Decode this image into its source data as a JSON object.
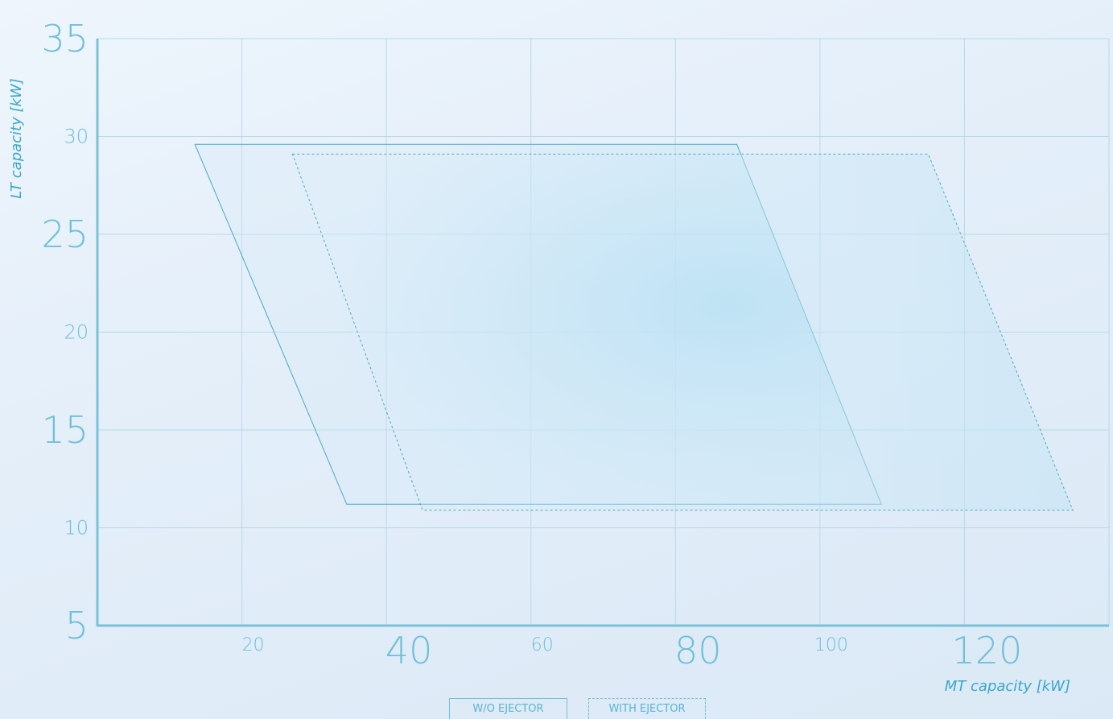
{
  "chart_data": {
    "type": "area",
    "xlabel": "MT capacity [kW]",
    "ylabel": "LT capacity [kW]",
    "xlim": [
      0,
      140
    ],
    "ylim": [
      5,
      35
    ],
    "x_ticks": [
      20,
      40,
      60,
      80,
      100,
      120
    ],
    "y_ticks": [
      5,
      10,
      15,
      20,
      25,
      30,
      35
    ],
    "grid": true,
    "legend_position": "bottom-center",
    "series": [
      {
        "name": "W/O EJECTOR",
        "line_style": "solid",
        "points": [
          [
            13.5,
            29.6
          ],
          [
            88.5,
            29.6
          ],
          [
            108.5,
            11.2
          ],
          [
            34.5,
            11.2
          ]
        ]
      },
      {
        "name": "WITH EJECTOR",
        "line_style": "dashed",
        "points": [
          [
            27,
            29.1
          ],
          [
            115,
            29.1
          ],
          [
            135,
            10.9
          ],
          [
            45,
            10.9
          ]
        ]
      }
    ],
    "colors": {
      "line": "#4aa9c4",
      "fill": "#bfe3f4",
      "grid": "#b4dbe8",
      "axis": "#79c2d8"
    }
  }
}
